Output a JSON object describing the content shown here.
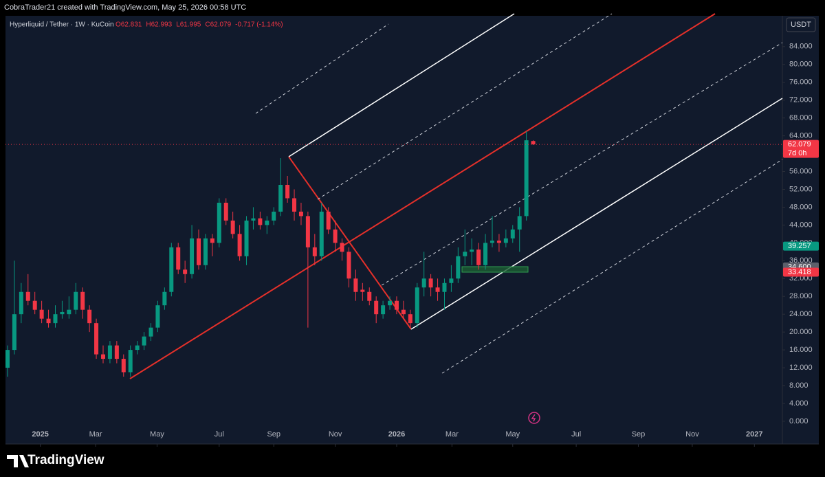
{
  "header": {
    "credit": "CobraTrader21 created with TradingView.com, May 25, 2026 00:58 UTC",
    "symbol_info": "Hyperliquid / Tether · 1W · KuCoin",
    "legend_ohlc": [
      "O62.831",
      "H62.993",
      "L61.995",
      "C62.079",
      "-0.717 (-1.14%)"
    ],
    "currency": "USDT",
    "brand": "TradingView"
  },
  "chart_data": {
    "type": "candlestick",
    "up_color": "#089981",
    "down_color": "#f23645",
    "x": [
      0,
      1,
      2,
      3,
      4,
      5,
      6,
      7,
      8,
      9,
      10,
      11,
      12,
      13,
      14,
      15,
      16,
      17,
      18,
      19,
      20,
      21,
      22,
      23,
      24,
      25,
      26,
      27,
      28,
      29,
      30,
      31,
      32,
      33,
      34,
      35,
      36,
      37,
      38,
      39,
      40,
      41,
      42,
      43,
      44,
      45,
      46,
      47,
      48,
      49,
      50,
      51,
      52,
      53,
      54,
      55,
      56,
      57,
      58,
      59,
      60,
      61,
      62,
      63,
      64,
      65,
      66,
      67,
      68,
      69,
      70,
      71,
      72,
      73,
      74,
      75,
      76,
      77
    ],
    "open": [
      12,
      16,
      24,
      29,
      27,
      25,
      23,
      22,
      24,
      24,
      25,
      29,
      25,
      22,
      15,
      14,
      17,
      14,
      11,
      16,
      17,
      19,
      21,
      26,
      29,
      39,
      34,
      33,
      41,
      35,
      41,
      40,
      49,
      45,
      42,
      37,
      45,
      45.5,
      44,
      45,
      47,
      53,
      50,
      47,
      46,
      39,
      37,
      47,
      43,
      40,
      38,
      32,
      29.5,
      29,
      27,
      24,
      26,
      27,
      25,
      24,
      22,
      30,
      32,
      30,
      29,
      31,
      32,
      37,
      38,
      38.5,
      35,
      40,
      40.5,
      40,
      41,
      43,
      46,
      62.831
    ],
    "high": [
      17,
      36,
      31,
      33,
      29,
      27,
      25,
      26,
      27,
      28,
      31,
      30,
      26,
      23,
      17,
      18,
      18,
      15,
      17,
      18,
      20,
      22,
      27,
      30,
      40,
      40,
      36,
      44,
      43,
      42,
      42,
      50,
      50,
      47,
      44,
      46,
      48,
      47,
      46,
      48,
      59,
      55,
      52,
      49,
      47,
      42,
      49,
      48,
      45,
      41,
      39,
      34,
      31,
      30,
      28,
      27,
      28,
      28,
      27,
      25,
      31,
      38,
      33,
      32,
      32,
      35,
      39,
      43,
      41,
      40,
      42,
      46,
      42,
      43,
      44,
      48,
      65,
      62.993
    ],
    "low": [
      10,
      15,
      22,
      26,
      24,
      22,
      21,
      21,
      23,
      23,
      24,
      23,
      20,
      14,
      13,
      13,
      13,
      10,
      10,
      15,
      16,
      18,
      20,
      25,
      28,
      33,
      31,
      32,
      34,
      34,
      37,
      39,
      44,
      41,
      36,
      35,
      43,
      43,
      42,
      44,
      46,
      49,
      45,
      44,
      21,
      35,
      36,
      42,
      38,
      36,
      30,
      27,
      27,
      26,
      22,
      23,
      25,
      24,
      23,
      21,
      21,
      28,
      28,
      27,
      25,
      29,
      31,
      35,
      35,
      34,
      34,
      39,
      38,
      39,
      40,
      38,
      45,
      61.995
    ],
    "close": [
      16,
      24,
      29,
      27,
      25,
      23,
      22,
      24,
      24.5,
      25,
      29,
      25,
      22,
      15,
      14,
      17,
      14,
      11,
      16,
      17,
      19,
      21,
      26,
      29,
      39,
      34,
      33,
      41,
      35,
      41,
      40,
      49,
      45,
      42,
      37,
      45,
      45.5,
      44,
      45,
      47,
      53,
      50,
      47,
      46,
      39,
      37,
      47,
      43,
      40,
      38,
      32,
      29,
      29,
      27,
      24,
      26,
      27,
      25,
      24,
      22,
      30,
      32,
      30,
      29,
      31,
      32,
      37,
      38,
      38.5,
      35,
      40,
      40.5,
      40,
      41,
      43,
      46,
      63,
      62.079
    ],
    "xlim": [
      -0.3,
      113.5
    ],
    "xticks": [
      {
        "value": 4.8,
        "label": "2025"
      },
      {
        "value": 12.9,
        "label": "Mar"
      },
      {
        "value": 21.9,
        "label": "May"
      },
      {
        "value": 31.0,
        "label": "Jul"
      },
      {
        "value": 39.0,
        "label": "Sep"
      },
      {
        "value": 48.0,
        "label": "Nov"
      },
      {
        "value": 57.0,
        "label": "2026"
      },
      {
        "value": 65.1,
        "label": "Mar"
      },
      {
        "value": 74.0,
        "label": "May"
      },
      {
        "value": 83.3,
        "label": "Jul"
      },
      {
        "value": 92.4,
        "label": "Sep"
      },
      {
        "value": 100.3,
        "label": "Nov"
      },
      {
        "value": 109.4,
        "label": "2027"
      }
    ],
    "ylim": [
      -1.4,
      90.6
    ],
    "yticks": [
      {
        "value": 0,
        "label": "0.000"
      },
      {
        "value": 4,
        "label": "4.000"
      },
      {
        "value": 8,
        "label": "8.000"
      },
      {
        "value": 12,
        "label": "12.000"
      },
      {
        "value": 16,
        "label": "16.000"
      },
      {
        "value": 20,
        "label": "20.000"
      },
      {
        "value": 24,
        "label": "24.000"
      },
      {
        "value": 28,
        "label": "28.000"
      },
      {
        "value": 32,
        "label": "32.000"
      },
      {
        "value": 36,
        "label": "36.000"
      },
      {
        "value": 40,
        "label": "40.000"
      },
      {
        "value": 44,
        "label": "44.000"
      },
      {
        "value": 48,
        "label": "48.000"
      },
      {
        "value": 52,
        "label": "52.000"
      },
      {
        "value": 56,
        "label": "56.000"
      },
      {
        "value": 60,
        "label": "60.000"
      },
      {
        "value": 64,
        "label": "64.000"
      },
      {
        "value": 68,
        "label": "68.000"
      },
      {
        "value": 72,
        "label": "72.000"
      },
      {
        "value": 76,
        "label": "76.000"
      },
      {
        "value": 80,
        "label": "80.000"
      },
      {
        "value": 84,
        "label": "84.000"
      }
    ],
    "price_labels": [
      {
        "value": 62.079,
        "label": "62.079",
        "sub": "7d 0h",
        "color": "#f23645"
      },
      {
        "value": 39.257,
        "label": "39.257",
        "color": "#089981"
      },
      {
        "value": 34.6,
        "label": "34.600",
        "color": "#5d606b"
      },
      {
        "value": 33.418,
        "label": "33.418",
        "color": "#f23645"
      }
    ]
  }
}
